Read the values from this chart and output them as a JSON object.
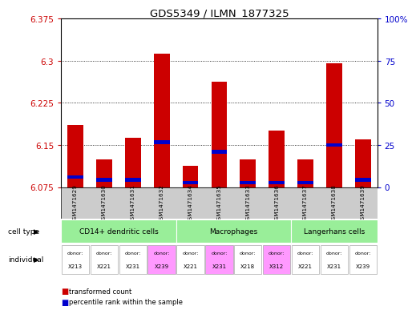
{
  "title": "GDS5349 / ILMN_1877325",
  "samples": [
    "GSM1471629",
    "GSM1471630",
    "GSM1471631",
    "GSM1471632",
    "GSM1471634",
    "GSM1471635",
    "GSM1471633",
    "GSM1471636",
    "GSM1471637",
    "GSM1471638",
    "GSM1471639"
  ],
  "red_values": [
    6.185,
    6.125,
    6.163,
    6.313,
    6.113,
    6.263,
    6.125,
    6.175,
    6.125,
    6.295,
    6.16
  ],
  "blue_values": [
    6.093,
    6.088,
    6.088,
    6.155,
    6.083,
    6.138,
    6.083,
    6.083,
    6.083,
    6.15,
    6.088
  ],
  "y_min": 6.075,
  "y_max": 6.375,
  "y_ticks": [
    6.075,
    6.15,
    6.225,
    6.3,
    6.375
  ],
  "y_labels": [
    "6.075",
    "6.15",
    "6.225",
    "6.3",
    "6.375"
  ],
  "y2_ticks_vals": [
    6.075,
    6.15,
    6.225,
    6.3,
    6.375
  ],
  "y2_labels": [
    "0",
    "25",
    "50",
    "75",
    "100%"
  ],
  "cell_types": [
    {
      "label": "CD14+ dendritic cells",
      "start": 0,
      "end": 4,
      "color": "#99ee99"
    },
    {
      "label": "Macrophages",
      "start": 4,
      "end": 8,
      "color": "#99ee99"
    },
    {
      "label": "Langerhans cells",
      "start": 8,
      "end": 11,
      "color": "#99ee99"
    }
  ],
  "donors": [
    "X213",
    "X221",
    "X231",
    "X239",
    "X221",
    "X231",
    "X218",
    "X312",
    "X221",
    "X231",
    "X239"
  ],
  "donor_colors": [
    "#ffffff",
    "#ffffff",
    "#ffffff",
    "#ff99ff",
    "#ffffff",
    "#ff99ff",
    "#ffffff",
    "#ff99ff",
    "#ffffff",
    "#ffffff",
    "#ffffff"
  ],
  "bar_width": 0.55,
  "red_color": "#cc0000",
  "blue_color": "#0000cc",
  "grid_color": "black",
  "background_color": "#ffffff",
  "left_axis_color": "#cc0000",
  "right_axis_color": "#0000cc",
  "sample_bg_color": "#cccccc",
  "blue_bar_height": 0.006
}
